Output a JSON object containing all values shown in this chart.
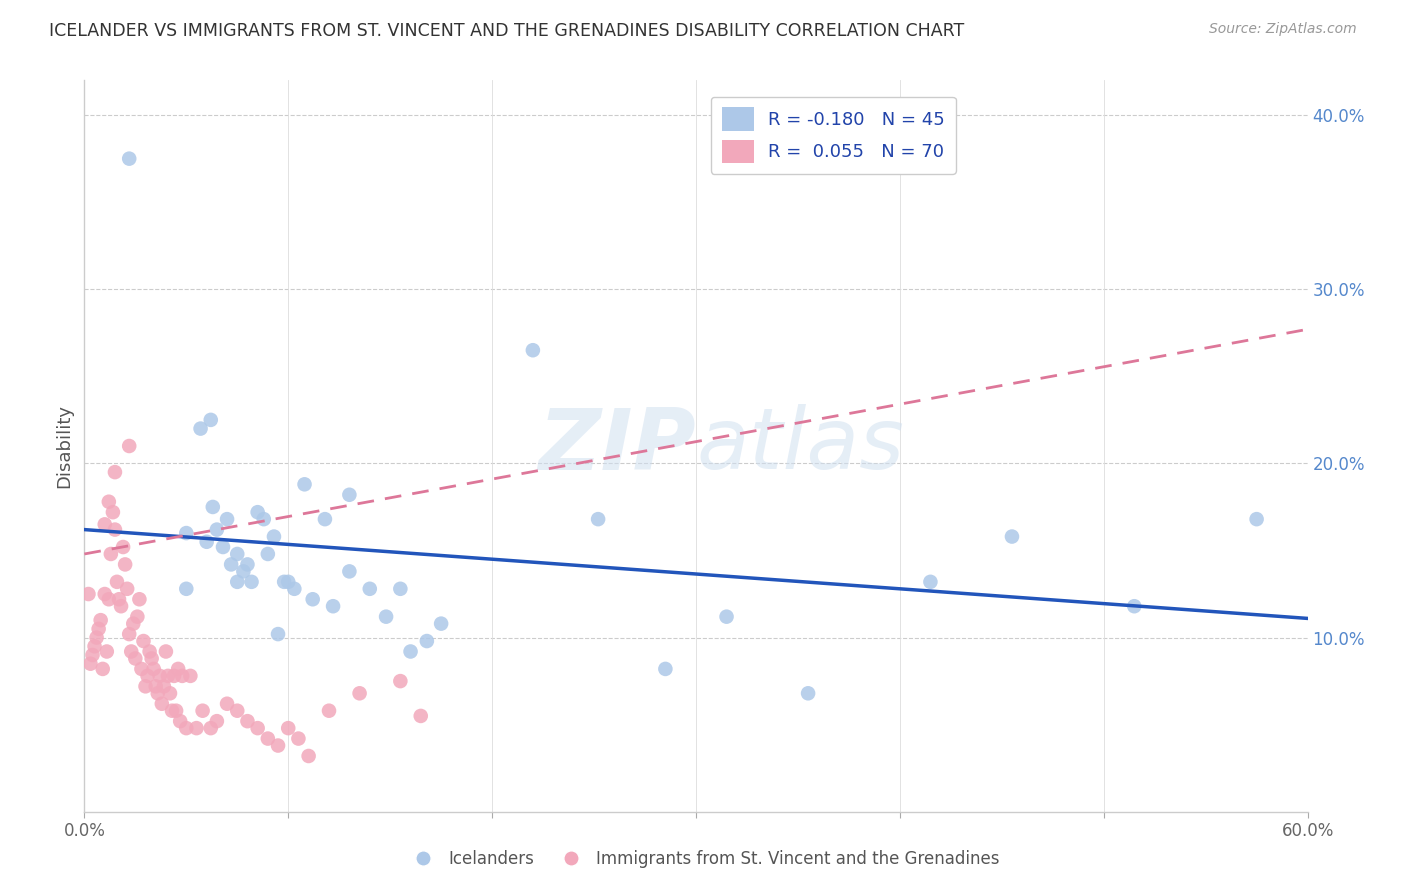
{
  "title": "ICELANDER VS IMMIGRANTS FROM ST. VINCENT AND THE GRENADINES DISABILITY CORRELATION CHART",
  "source": "Source: ZipAtlas.com",
  "ylabel": "Disability",
  "xlim": [
    0.0,
    0.6
  ],
  "ylim": [
    0.0,
    0.42
  ],
  "yticks": [
    0.1,
    0.2,
    0.3,
    0.4
  ],
  "xticks": [
    0.0,
    0.1,
    0.2,
    0.3,
    0.4,
    0.5,
    0.6
  ],
  "xtick_labels_show": [
    "0.0%",
    "",
    "",
    "",
    "",
    "",
    "60.0%"
  ],
  "ytick_labels": [
    "10.0%",
    "20.0%",
    "30.0%",
    "40.0%"
  ],
  "background_color": "#ffffff",
  "watermark": "ZIPatlas",
  "legend_R1": "-0.180",
  "legend_N1": "45",
  "legend_R2": "0.055",
  "legend_N2": "70",
  "blue_color": "#adc8e8",
  "pink_color": "#f2a8bb",
  "line_blue_color": "#2255bb",
  "line_pink_color": "#dd7799",
  "blue_line_intercept": 0.162,
  "blue_line_slope": -0.085,
  "pink_line_intercept": 0.148,
  "pink_line_slope": 0.215,
  "icelanders_x": [
    0.022,
    0.05,
    0.057,
    0.062,
    0.063,
    0.065,
    0.068,
    0.07,
    0.072,
    0.075,
    0.078,
    0.08,
    0.082,
    0.085,
    0.088,
    0.09,
    0.093,
    0.095,
    0.098,
    0.1,
    0.103,
    0.108,
    0.112,
    0.118,
    0.122,
    0.13,
    0.14,
    0.148,
    0.155,
    0.16,
    0.168,
    0.175,
    0.22,
    0.252,
    0.285,
    0.315,
    0.355,
    0.415,
    0.455,
    0.515,
    0.575,
    0.05,
    0.06,
    0.075,
    0.13
  ],
  "icelanders_y": [
    0.375,
    0.16,
    0.22,
    0.225,
    0.175,
    0.162,
    0.152,
    0.168,
    0.142,
    0.132,
    0.138,
    0.142,
    0.132,
    0.172,
    0.168,
    0.148,
    0.158,
    0.102,
    0.132,
    0.132,
    0.128,
    0.188,
    0.122,
    0.168,
    0.118,
    0.138,
    0.128,
    0.112,
    0.128,
    0.092,
    0.098,
    0.108,
    0.265,
    0.168,
    0.082,
    0.112,
    0.068,
    0.132,
    0.158,
    0.118,
    0.168,
    0.128,
    0.155,
    0.148,
    0.182
  ],
  "svg_x": [
    0.002,
    0.003,
    0.004,
    0.005,
    0.006,
    0.007,
    0.008,
    0.009,
    0.01,
    0.011,
    0.012,
    0.013,
    0.014,
    0.015,
    0.016,
    0.017,
    0.018,
    0.019,
    0.02,
    0.021,
    0.022,
    0.023,
    0.024,
    0.025,
    0.026,
    0.027,
    0.028,
    0.029,
    0.03,
    0.031,
    0.032,
    0.033,
    0.034,
    0.035,
    0.036,
    0.037,
    0.038,
    0.039,
    0.04,
    0.041,
    0.042,
    0.043,
    0.044,
    0.045,
    0.046,
    0.047,
    0.048,
    0.05,
    0.052,
    0.055,
    0.058,
    0.062,
    0.065,
    0.07,
    0.075,
    0.08,
    0.085,
    0.09,
    0.095,
    0.1,
    0.105,
    0.11,
    0.12,
    0.135,
    0.155,
    0.165,
    0.01,
    0.012,
    0.015,
    0.022
  ],
  "svg_y": [
    0.125,
    0.085,
    0.09,
    0.095,
    0.1,
    0.105,
    0.11,
    0.082,
    0.125,
    0.092,
    0.122,
    0.148,
    0.172,
    0.162,
    0.132,
    0.122,
    0.118,
    0.152,
    0.142,
    0.128,
    0.102,
    0.092,
    0.108,
    0.088,
    0.112,
    0.122,
    0.082,
    0.098,
    0.072,
    0.078,
    0.092,
    0.088,
    0.082,
    0.072,
    0.068,
    0.078,
    0.062,
    0.072,
    0.092,
    0.078,
    0.068,
    0.058,
    0.078,
    0.058,
    0.082,
    0.052,
    0.078,
    0.048,
    0.078,
    0.048,
    0.058,
    0.048,
    0.052,
    0.062,
    0.058,
    0.052,
    0.048,
    0.042,
    0.038,
    0.048,
    0.042,
    0.032,
    0.058,
    0.068,
    0.075,
    0.055,
    0.165,
    0.178,
    0.195,
    0.21
  ]
}
